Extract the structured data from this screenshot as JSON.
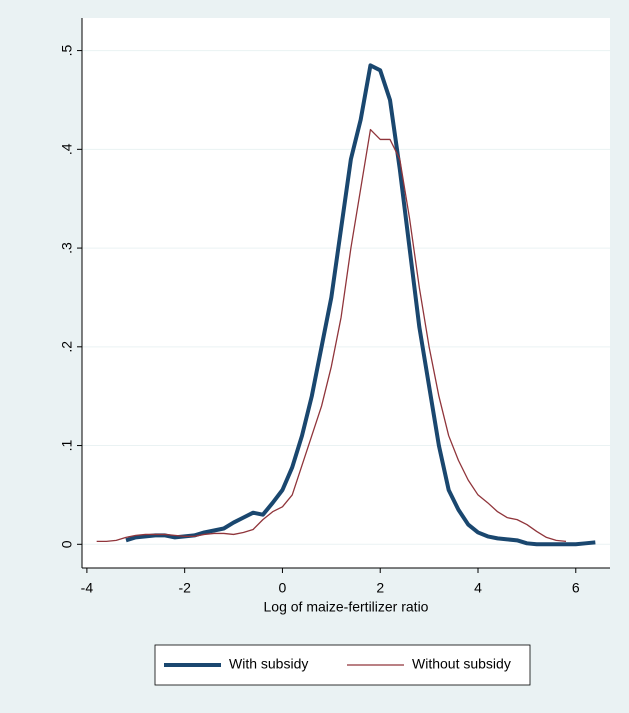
{
  "chart_data": {
    "type": "line",
    "xlabel": "Log of maize-fertilizer ratio",
    "x": [
      -3.8,
      -3.6,
      -3.4,
      -3.2,
      -3.0,
      -2.8,
      -2.6,
      -2.4,
      -2.2,
      -2.0,
      -1.8,
      -1.6,
      -1.4,
      -1.2,
      -1.0,
      -0.8,
      -0.6,
      -0.4,
      -0.2,
      0.0,
      0.2,
      0.4,
      0.6,
      0.8,
      1.0,
      1.2,
      1.4,
      1.6,
      1.8,
      2.0,
      2.2,
      2.4,
      2.6,
      2.8,
      3.0,
      3.2,
      3.4,
      3.6,
      3.8,
      4.0,
      4.2,
      4.4,
      4.6,
      4.8,
      5.0,
      5.2,
      5.4,
      5.6,
      5.8,
      6.0,
      6.2,
      6.4,
      6.6
    ],
    "series": [
      {
        "name": "With subsidy",
        "color": "#1a476f",
        "width": 4,
        "values": [
          null,
          null,
          null,
          0.004,
          0.007,
          0.008,
          0.009,
          0.009,
          0.007,
          0.008,
          0.009,
          0.012,
          0.014,
          0.016,
          0.022,
          0.027,
          0.032,
          0.03,
          0.042,
          0.055,
          0.078,
          0.11,
          0.15,
          0.2,
          0.25,
          0.32,
          0.39,
          0.43,
          0.485,
          0.48,
          0.45,
          0.38,
          0.3,
          0.22,
          0.16,
          0.1,
          0.055,
          0.035,
          0.02,
          0.012,
          0.008,
          0.006,
          0.005,
          0.004,
          0.001,
          0.0,
          0.0,
          0.0,
          0.0,
          0.0,
          0.001,
          0.002,
          null
        ]
      },
      {
        "name": "Without subsidy",
        "color": "#90353b",
        "width": 1.3,
        "values": [
          0.003,
          0.003,
          0.004,
          0.007,
          0.009,
          0.01,
          0.01,
          0.01,
          0.009,
          0.008,
          0.008,
          0.01,
          0.011,
          0.011,
          0.01,
          0.012,
          0.015,
          0.025,
          0.033,
          0.038,
          0.05,
          0.08,
          0.11,
          0.14,
          0.18,
          0.23,
          0.3,
          0.36,
          0.42,
          0.41,
          0.41,
          0.39,
          0.33,
          0.26,
          0.2,
          0.15,
          0.11,
          0.085,
          0.065,
          0.05,
          0.042,
          0.033,
          0.027,
          0.025,
          0.02,
          0.013,
          0.007,
          0.004,
          0.003,
          null,
          null,
          null,
          null
        ]
      }
    ],
    "xlim": [
      -4.1,
      6.7
    ],
    "ylim": [
      -0.024,
      0.533
    ],
    "xticks": [
      -4,
      -2,
      0,
      2,
      4,
      6
    ],
    "yticks": [
      0,
      {
        "value": 0.1,
        "label": ".1"
      },
      {
        "value": 0.2,
        "label": ".2"
      },
      {
        "value": 0.3,
        "label": ".3"
      },
      {
        "value": 0.4,
        "label": ".4"
      },
      {
        "value": 0.5,
        "label": ".5"
      }
    ],
    "grid": true
  }
}
